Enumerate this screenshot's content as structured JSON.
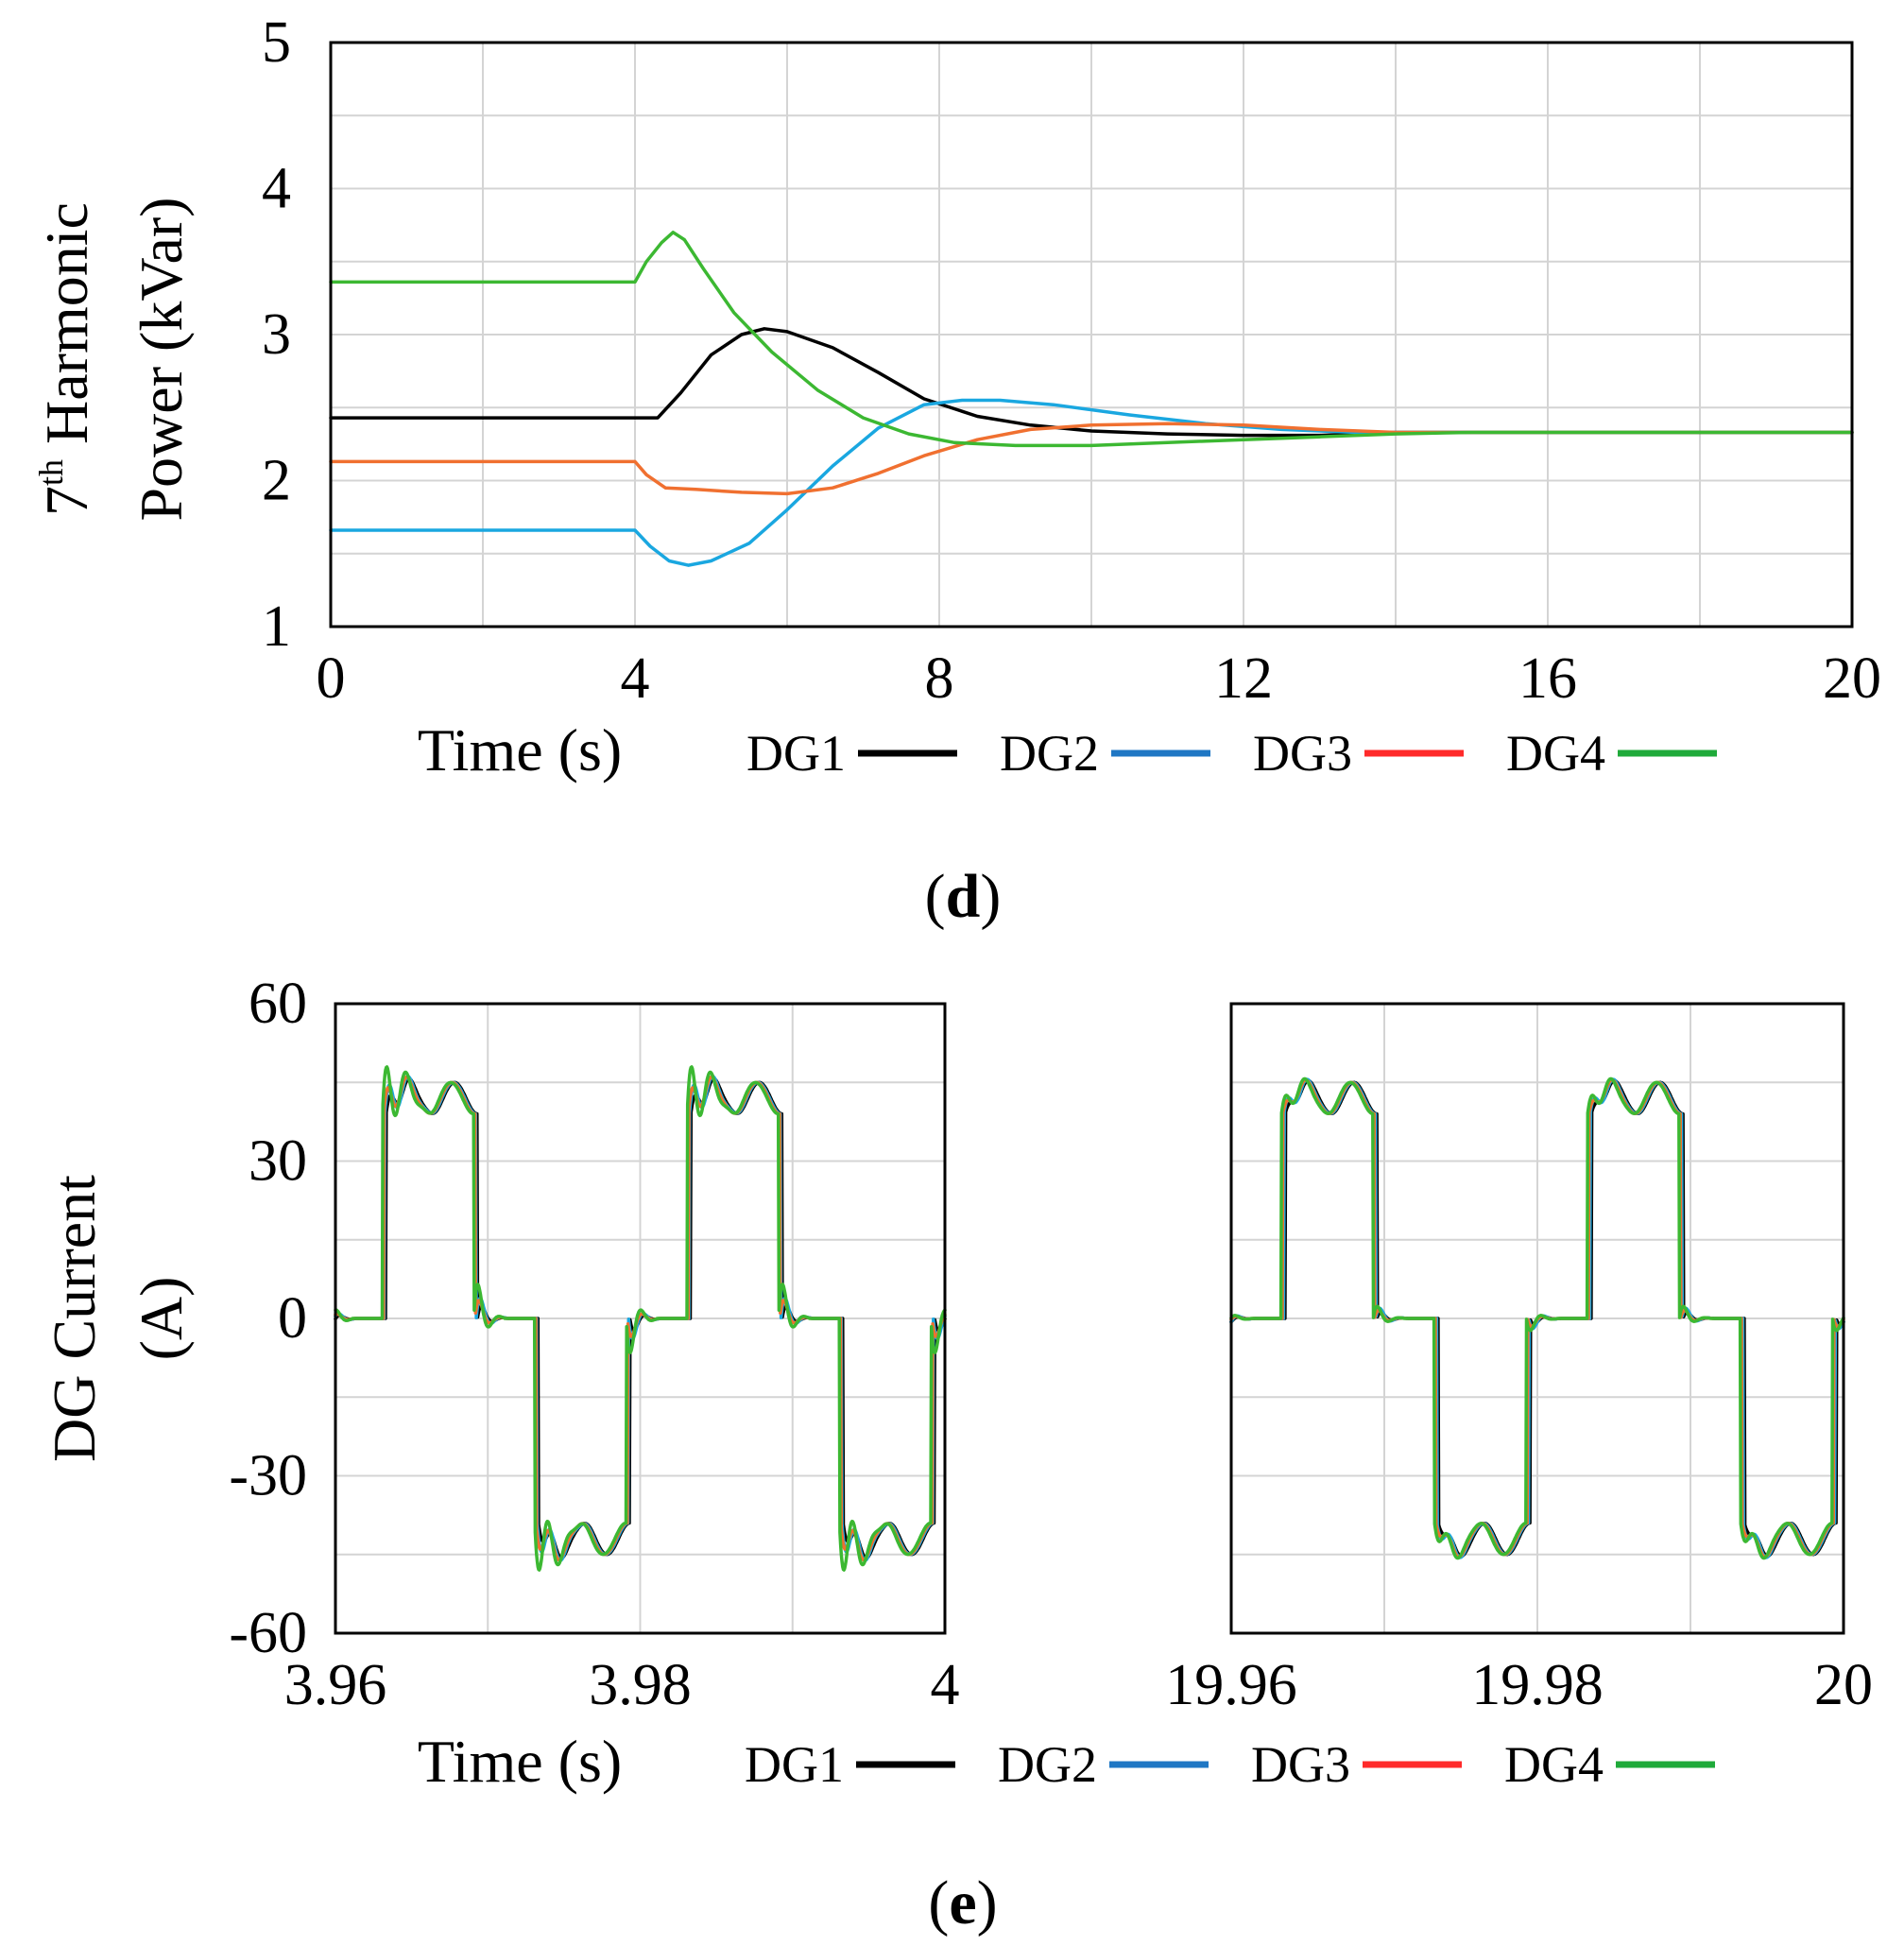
{
  "chart_data": [
    {
      "id": "d",
      "type": "line",
      "caption": "d",
      "xlabel": "Time (s)",
      "ylabel_line1": "7",
      "ylabel_sup": "th",
      "ylabel_line1_rest": " Harmonic",
      "ylabel_line2": "Power (kVar)",
      "xlim": [
        0,
        20
      ],
      "ylim": [
        1,
        5
      ],
      "xticks": [
        "0",
        "4",
        "8",
        "12",
        "16",
        "20"
      ],
      "yticks": [
        "1",
        "2",
        "3",
        "4",
        "5"
      ],
      "series": [
        {
          "name": "DG1",
          "color": "#000000",
          "points": [
            [
              0,
              2.43
            ],
            [
              4.3,
              2.43
            ],
            [
              4.6,
              2.6
            ],
            [
              5.0,
              2.86
            ],
            [
              5.4,
              3.0
            ],
            [
              5.7,
              3.04
            ],
            [
              6.0,
              3.02
            ],
            [
              6.6,
              2.91
            ],
            [
              7.2,
              2.74
            ],
            [
              7.8,
              2.56
            ],
            [
              8.5,
              2.44
            ],
            [
              9.2,
              2.38
            ],
            [
              10,
              2.34
            ],
            [
              11,
              2.32
            ],
            [
              12,
              2.31
            ],
            [
              13,
              2.31
            ],
            [
              14,
              2.33
            ],
            [
              15,
              2.33
            ],
            [
              20,
              2.33
            ]
          ]
        },
        {
          "name": "DG2",
          "color": "#1aa7e0",
          "points": [
            [
              0,
              1.66
            ],
            [
              4,
              1.66
            ],
            [
              4.2,
              1.55
            ],
            [
              4.45,
              1.45
            ],
            [
              4.7,
              1.42
            ],
            [
              5.0,
              1.45
            ],
            [
              5.5,
              1.57
            ],
            [
              6.0,
              1.8
            ],
            [
              6.6,
              2.1
            ],
            [
              7.2,
              2.36
            ],
            [
              7.8,
              2.52
            ],
            [
              8.3,
              2.55
            ],
            [
              8.8,
              2.55
            ],
            [
              9.5,
              2.52
            ],
            [
              10.5,
              2.45
            ],
            [
              11.5,
              2.39
            ],
            [
              12.5,
              2.35
            ],
            [
              13.5,
              2.33
            ],
            [
              15,
              2.33
            ],
            [
              20,
              2.33
            ]
          ]
        },
        {
          "name": "DG3",
          "color": "#f07030",
          "points": [
            [
              0,
              2.13
            ],
            [
              4,
              2.13
            ],
            [
              4.15,
              2.04
            ],
            [
              4.4,
              1.95
            ],
            [
              4.8,
              1.94
            ],
            [
              5.4,
              1.92
            ],
            [
              6.0,
              1.91
            ],
            [
              6.6,
              1.95
            ],
            [
              7.2,
              2.05
            ],
            [
              7.8,
              2.17
            ],
            [
              8.5,
              2.28
            ],
            [
              9.2,
              2.35
            ],
            [
              10,
              2.38
            ],
            [
              11,
              2.39
            ],
            [
              12,
              2.38
            ],
            [
              13,
              2.35
            ],
            [
              14,
              2.33
            ],
            [
              15,
              2.33
            ],
            [
              20,
              2.33
            ]
          ]
        },
        {
          "name": "DG4",
          "color": "#3cb832",
          "points": [
            [
              0,
              3.36
            ],
            [
              4,
              3.36
            ],
            [
              4.15,
              3.5
            ],
            [
              4.35,
              3.63
            ],
            [
              4.5,
              3.7
            ],
            [
              4.65,
              3.65
            ],
            [
              4.9,
              3.45
            ],
            [
              5.3,
              3.15
            ],
            [
              5.8,
              2.88
            ],
            [
              6.4,
              2.62
            ],
            [
              7.0,
              2.43
            ],
            [
              7.6,
              2.32
            ],
            [
              8.2,
              2.26
            ],
            [
              9.0,
              2.24
            ],
            [
              10,
              2.24
            ],
            [
              11,
              2.26
            ],
            [
              12,
              2.28
            ],
            [
              13,
              2.3
            ],
            [
              14,
              2.32
            ],
            [
              15,
              2.33
            ],
            [
              20,
              2.33
            ]
          ]
        }
      ]
    },
    {
      "id": "e-left",
      "type": "line",
      "caption": "e",
      "xlabel": "Time (s)",
      "ylabel_line1": "DG Current",
      "ylabel_line2": "(A)",
      "xlim": [
        3.96,
        4.0
      ],
      "ylim": [
        -60,
        60
      ],
      "xticks": [
        "3.96",
        "3.98",
        "4"
      ],
      "yticks": [
        "60",
        "30",
        "0",
        "-30",
        "-60"
      ],
      "waveform": {
        "period": 0.02,
        "phase_start": 3.9612,
        "amplitude": 42,
        "dead_band": 0.2,
        "ringing": [
          0.6,
          1.0,
          0.9,
          1.7
        ]
      },
      "series": [
        {
          "name": "DG1",
          "color": "#000000"
        },
        {
          "name": "DG2",
          "color": "#1aa7e0"
        },
        {
          "name": "DG3",
          "color": "#f07030"
        },
        {
          "name": "DG4",
          "color": "#3cb832"
        }
      ]
    },
    {
      "id": "e-right",
      "type": "line",
      "xlim": [
        19.96,
        20.0
      ],
      "ylim": [
        -60,
        60
      ],
      "xticks": [
        "19.96",
        "19.98",
        "20"
      ],
      "waveform": {
        "period": 0.02,
        "phase_start": 19.9614,
        "amplitude": 42,
        "dead_band": 0.2,
        "ringing": [
          0.3,
          0.5,
          0.4,
          0.6
        ]
      },
      "series": [
        {
          "name": "DG1",
          "color": "#000000"
        },
        {
          "name": "DG2",
          "color": "#1aa7e0"
        },
        {
          "name": "DG3",
          "color": "#f07030"
        },
        {
          "name": "DG4",
          "color": "#3cb832"
        }
      ]
    }
  ],
  "legend": [
    {
      "label": "DG1",
      "color": "#000000"
    },
    {
      "label": "DG2",
      "color": "#1f77c4"
    },
    {
      "label": "DG3",
      "color": "#ff2a2a"
    },
    {
      "label": "DG4",
      "color": "#1faa3a"
    }
  ],
  "captions": {
    "d": "d",
    "e": "e"
  }
}
